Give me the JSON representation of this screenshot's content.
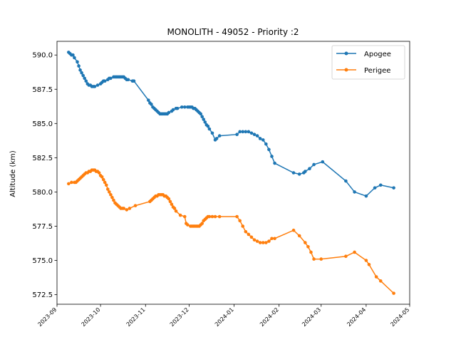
{
  "chart_data": {
    "type": "line",
    "title": "MONOLITH - 49052 - Priority :2",
    "xlabel": "",
    "ylabel": "Altitude (km)",
    "xlim": [
      "2023-09-01",
      "2024-05-01"
    ],
    "ylim": [
      571.8,
      591.0
    ],
    "x_ticks": [
      "2023-09",
      "2023-10",
      "2023-11",
      "2023-12",
      "2024-01",
      "2024-02",
      "2024-03",
      "2024-04",
      "2024-05"
    ],
    "y_ticks": [
      "572.5",
      "575.0",
      "577.5",
      "580.0",
      "582.5",
      "585.0",
      "587.5",
      "590.0"
    ],
    "grid": false,
    "legend_position": "top-right",
    "series": [
      {
        "name": "Apogee",
        "color": "#1f77b4",
        "marker": "circle",
        "x": [
          "2023-09-09",
          "2023-09-10",
          "2023-09-11",
          "2023-09-12",
          "2023-09-13",
          "2023-09-15",
          "2023-09-16",
          "2023-09-17",
          "2023-09-18",
          "2023-09-19",
          "2023-09-20",
          "2023-09-21",
          "2023-09-22",
          "2023-09-23",
          "2023-09-24",
          "2023-09-25",
          "2023-09-26",
          "2023-09-27",
          "2023-09-29",
          "2023-10-01",
          "2023-10-02",
          "2023-10-03",
          "2023-10-04",
          "2023-10-06",
          "2023-10-07",
          "2023-10-08",
          "2023-10-10",
          "2023-10-11",
          "2023-10-12",
          "2023-10-13",
          "2023-10-14",
          "2023-10-15",
          "2023-10-16",
          "2023-10-17",
          "2023-10-18",
          "2023-10-19",
          "2023-10-20",
          "2023-10-23",
          "2023-10-24",
          "2023-11-03",
          "2023-11-04",
          "2023-11-05",
          "2023-11-06",
          "2023-11-07",
          "2023-11-08",
          "2023-11-09",
          "2023-11-10",
          "2023-11-11",
          "2023-11-12",
          "2023-11-13",
          "2023-11-14",
          "2023-11-15",
          "2023-11-16",
          "2023-11-17",
          "2023-11-19",
          "2023-11-20",
          "2023-11-22",
          "2023-11-23",
          "2023-11-26",
          "2023-11-28",
          "2023-11-30",
          "2023-12-01",
          "2023-12-02",
          "2023-12-03",
          "2023-12-04",
          "2023-12-05",
          "2023-12-06",
          "2023-12-07",
          "2023-12-08",
          "2023-12-09",
          "2023-12-10",
          "2023-12-11",
          "2023-12-12",
          "2023-12-13",
          "2023-12-14",
          "2023-12-15",
          "2023-12-17",
          "2023-12-19",
          "2023-12-20",
          "2023-12-22",
          "2024-01-03",
          "2024-01-05",
          "2024-01-07",
          "2024-01-09",
          "2024-01-11",
          "2024-01-13",
          "2024-01-15",
          "2024-01-17",
          "2024-01-19",
          "2024-01-21",
          "2024-01-23",
          "2024-01-25",
          "2024-01-27",
          "2024-01-29",
          "2024-02-11",
          "2024-02-15",
          "2024-02-18",
          "2024-02-19",
          "2024-02-22",
          "2024-02-25",
          "2024-03-02",
          "2024-03-18",
          "2024-03-24",
          "2024-04-01",
          "2024-04-07",
          "2024-04-11",
          "2024-04-20"
        ],
        "values": [
          590.2,
          590.1,
          590.0,
          590.0,
          589.8,
          589.5,
          589.2,
          588.9,
          588.7,
          588.5,
          588.3,
          588.1,
          587.9,
          587.8,
          587.8,
          587.7,
          587.7,
          587.7,
          587.8,
          587.9,
          588.0,
          588.1,
          588.1,
          588.2,
          588.3,
          588.3,
          588.4,
          588.4,
          588.4,
          588.4,
          588.4,
          588.4,
          588.4,
          588.4,
          588.3,
          588.2,
          588.2,
          588.1,
          588.1,
          586.7,
          586.5,
          586.4,
          586.2,
          586.1,
          586.0,
          585.9,
          585.8,
          585.7,
          585.7,
          585.7,
          585.7,
          585.7,
          585.7,
          585.8,
          585.9,
          586.0,
          586.1,
          586.1,
          586.2,
          586.2,
          586.2,
          586.2,
          586.2,
          586.2,
          586.1,
          586.1,
          586.0,
          585.9,
          585.8,
          585.7,
          585.5,
          585.3,
          585.1,
          584.9,
          584.8,
          584.6,
          584.3,
          583.8,
          583.9,
          584.1,
          584.2,
          584.4,
          584.4,
          584.4,
          584.4,
          584.3,
          584.2,
          584.1,
          583.9,
          583.8,
          583.5,
          583.1,
          582.6,
          582.1,
          581.4,
          581.3,
          581.4,
          581.5,
          581.7,
          582.0,
          582.2,
          580.8,
          580.0,
          579.7,
          580.3,
          580.5,
          580.3
        ]
      },
      {
        "name": "Perigee",
        "color": "#ff7f0e",
        "marker": "circle",
        "x": [
          "2023-09-09",
          "2023-09-11",
          "2023-09-13",
          "2023-09-14",
          "2023-09-15",
          "2023-09-16",
          "2023-09-17",
          "2023-09-18",
          "2023-09-19",
          "2023-09-20",
          "2023-09-21",
          "2023-09-22",
          "2023-09-23",
          "2023-09-24",
          "2023-09-25",
          "2023-09-26",
          "2023-09-27",
          "2023-09-28",
          "2023-09-29",
          "2023-09-30",
          "2023-10-01",
          "2023-10-02",
          "2023-10-03",
          "2023-10-04",
          "2023-10-05",
          "2023-10-06",
          "2023-10-07",
          "2023-10-08",
          "2023-10-09",
          "2023-10-10",
          "2023-10-11",
          "2023-10-12",
          "2023-10-13",
          "2023-10-14",
          "2023-10-15",
          "2023-10-16",
          "2023-10-17",
          "2023-10-19",
          "2023-10-21",
          "2023-10-25",
          "2023-11-04",
          "2023-11-05",
          "2023-11-06",
          "2023-11-07",
          "2023-11-08",
          "2023-11-09",
          "2023-11-10",
          "2023-11-11",
          "2023-11-12",
          "2023-11-13",
          "2023-11-14",
          "2023-11-15",
          "2023-11-16",
          "2023-11-17",
          "2023-11-18",
          "2023-11-19",
          "2023-11-20",
          "2023-11-21",
          "2023-11-22",
          "2023-11-25",
          "2023-11-28",
          "2023-11-29",
          "2023-11-30",
          "2023-12-02",
          "2023-12-03",
          "2023-12-04",
          "2023-12-05",
          "2023-12-06",
          "2023-12-07",
          "2023-12-08",
          "2023-12-09",
          "2023-12-10",
          "2023-12-11",
          "2023-12-12",
          "2023-12-13",
          "2023-12-14",
          "2023-12-15",
          "2023-12-17",
          "2023-12-19",
          "2023-12-22",
          "2024-01-03",
          "2024-01-05",
          "2024-01-07",
          "2024-01-09",
          "2024-01-11",
          "2024-01-13",
          "2024-01-15",
          "2024-01-17",
          "2024-01-19",
          "2024-01-21",
          "2024-01-23",
          "2024-01-25",
          "2024-01-27",
          "2024-01-29",
          "2024-02-11",
          "2024-02-15",
          "2024-02-19",
          "2024-02-21",
          "2024-02-23",
          "2024-02-25",
          "2024-03-01",
          "2024-03-18",
          "2024-03-24",
          "2024-04-01",
          "2024-04-03",
          "2024-04-08",
          "2024-04-11",
          "2024-04-20"
        ],
        "values": [
          580.6,
          580.7,
          580.7,
          580.7,
          580.8,
          580.9,
          581.0,
          581.1,
          581.2,
          581.3,
          581.4,
          581.4,
          581.5,
          581.5,
          581.6,
          581.6,
          581.6,
          581.5,
          581.5,
          581.4,
          581.2,
          581.1,
          580.9,
          580.7,
          580.5,
          580.2,
          580.0,
          579.8,
          579.6,
          579.4,
          579.2,
          579.1,
          579.0,
          578.9,
          578.8,
          578.8,
          578.8,
          578.7,
          578.8,
          579.0,
          579.3,
          579.4,
          579.5,
          579.6,
          579.7,
          579.7,
          579.8,
          579.8,
          579.8,
          579.8,
          579.7,
          579.7,
          579.6,
          579.5,
          579.3,
          579.1,
          578.9,
          578.8,
          578.6,
          578.3,
          578.2,
          577.7,
          577.6,
          577.5,
          577.5,
          577.5,
          577.5,
          577.5,
          577.5,
          577.5,
          577.6,
          577.7,
          577.9,
          578.0,
          578.1,
          578.2,
          578.2,
          578.2,
          578.2,
          578.2,
          578.2,
          577.9,
          577.5,
          577.1,
          576.9,
          576.7,
          576.5,
          576.4,
          576.3,
          576.3,
          576.3,
          576.4,
          576.6,
          576.6,
          577.2,
          576.8,
          576.3,
          576.0,
          575.6,
          575.1,
          575.1,
          575.3,
          575.6,
          575.0,
          574.7,
          573.8,
          573.5,
          572.6
        ]
      }
    ]
  }
}
